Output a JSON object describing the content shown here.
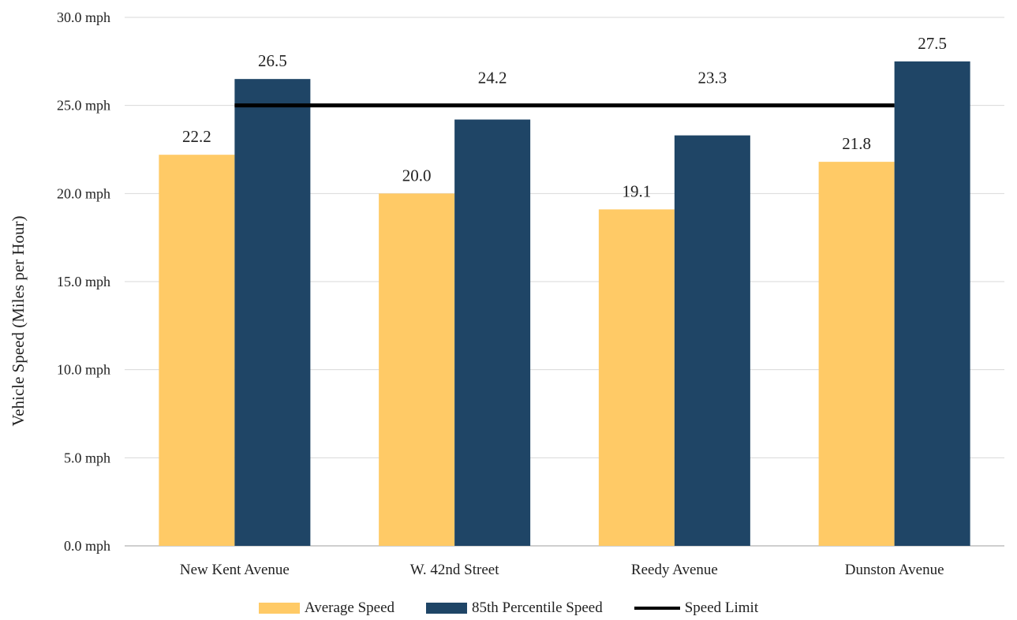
{
  "chart_data": {
    "type": "bar",
    "title": "",
    "ylabel": "Vehicle Speed (Miles per Hour)",
    "xlabel": "",
    "categories": [
      "New Kent Avenue",
      "W. 42nd Street",
      "Reedy Avenue",
      "Dunston Avenue"
    ],
    "series": [
      {
        "name": "Average Speed",
        "values": [
          22.2,
          20.0,
          19.1,
          21.8
        ],
        "labels": [
          "22.2",
          "20.0",
          "19.1",
          "21.8"
        ],
        "color": "#FFCA66"
      },
      {
        "name": "85th Percentile Speed",
        "values": [
          26.5,
          24.2,
          23.3,
          27.5
        ],
        "labels": [
          "26.5",
          "24.2",
          "23.3",
          "27.5"
        ],
        "color": "#1F4566"
      }
    ],
    "reference_line": {
      "name": "Speed Limit",
      "value": 25,
      "color": "#000000"
    },
    "ylim": [
      0,
      30
    ],
    "yticks": [
      0,
      5,
      10,
      15,
      20,
      25,
      30
    ],
    "ytick_labels": [
      "0.0 mph",
      "5.0 mph",
      "10.0 mph",
      "15.0 mph",
      "20.0 mph",
      "25.0 mph",
      "30.0 mph"
    ],
    "grid": true,
    "legend_position": "bottom"
  }
}
